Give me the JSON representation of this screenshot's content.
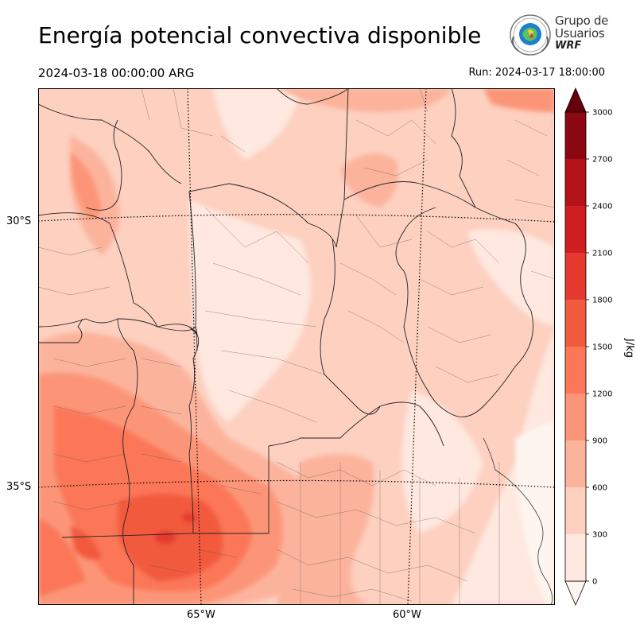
{
  "title": "Energía potencial convectiva disponible",
  "valid_time": "2024-03-18 00:00:00 ARG",
  "run_time": "Run: 2024-03-17 18:00:00",
  "logo": {
    "line1": "Grupo de",
    "line2": "Usuarios",
    "line3": "WRF"
  },
  "map": {
    "lat_labels": [
      "30°S",
      "35°S"
    ],
    "lon_labels": [
      "65°W",
      "60°W"
    ]
  },
  "colorbar": {
    "label": "J/kg",
    "levels": [
      0,
      300,
      600,
      900,
      1200,
      1500,
      1800,
      2100,
      2400,
      2700,
      3000
    ],
    "colors": [
      "#fee8df",
      "#fdd0c0",
      "#fcb39c",
      "#fc9577",
      "#fb7758",
      "#f25a3e",
      "#e53a2f",
      "#cf1d20",
      "#b21218",
      "#8a0812"
    ],
    "over_color": "#67000d",
    "under_color": "#fff5f0",
    "extend": "both"
  }
}
